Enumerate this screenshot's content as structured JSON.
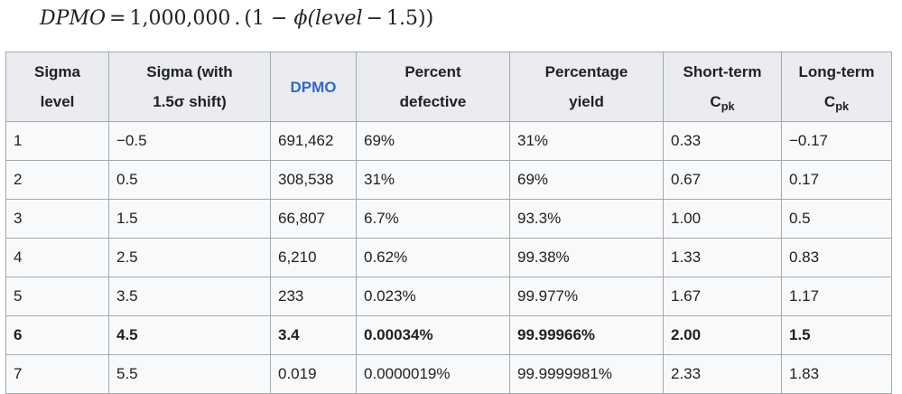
{
  "formula": {
    "lhs": "DPMO",
    "equals": "=",
    "value": "1,000,000",
    "dot": ".",
    "open": "(1 −",
    "phi": "ϕ",
    "arg": "(level",
    "minus": "−",
    "shift": "1.5))"
  },
  "table": {
    "headers": [
      {
        "line1": "Sigma",
        "line2": "level"
      },
      {
        "line1": "Sigma (with",
        "line2": "1.5σ shift)"
      },
      {
        "line1": "DPMO",
        "line2": ""
      },
      {
        "line1": "Percent",
        "line2": "defective"
      },
      {
        "line1": "Percentage",
        "line2": "yield"
      },
      {
        "line1": "Short-term",
        "line2": "C",
        "sub": "pk"
      },
      {
        "line1": "Long-term",
        "line2": "C",
        "sub": "pk"
      }
    ],
    "rows": [
      [
        "1",
        "−0.5",
        "691,462",
        "69%",
        "31%",
        "0.33",
        "−0.17"
      ],
      [
        "2",
        "0.5",
        "308,538",
        "31%",
        "69%",
        "0.67",
        "0.17"
      ],
      [
        "3",
        "1.5",
        "66,807",
        "6.7%",
        "93.3%",
        "1.00",
        "0.5"
      ],
      [
        "4",
        "2.5",
        "6,210",
        "0.62%",
        "99.38%",
        "1.33",
        "0.83"
      ],
      [
        "5",
        "3.5",
        "233",
        "0.023%",
        "99.977%",
        "1.67",
        "1.17"
      ],
      [
        "6",
        "4.5",
        "3.4",
        "0.00034%",
        "99.99966%",
        "2.00",
        "1.5"
      ],
      [
        "7",
        "5.5",
        "0.019",
        "0.0000019%",
        "99.9999981%",
        "2.33",
        "1.83"
      ]
    ],
    "highlight_row": 5
  },
  "colors": {
    "header_bg": "#eaecf0",
    "cell_bg": "#f8f9fa",
    "border": "#a2a9b1",
    "link": "#3366cc",
    "text": "#202122"
  }
}
